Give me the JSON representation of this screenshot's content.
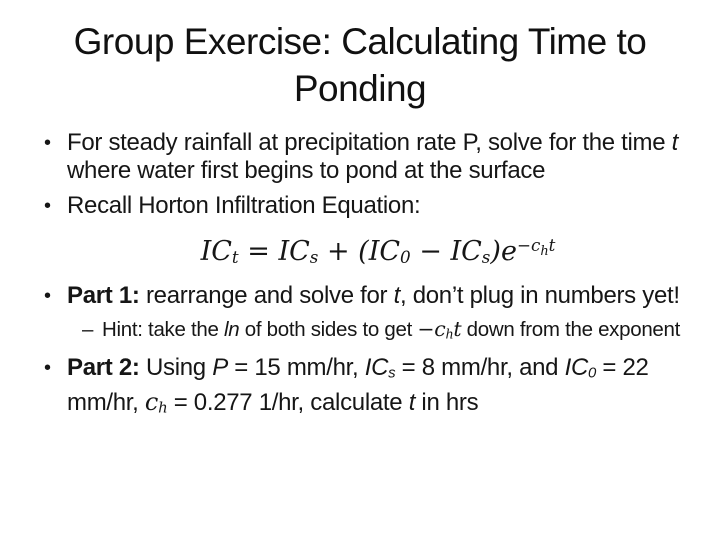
{
  "slide": {
    "background_color": "#ffffff",
    "text_color": "#161616",
    "title": "Group Exercise: Calculating Time to Ponding",
    "bullet_char": "•",
    "dash_char": "–",
    "content": [
      {
        "kind": "bullet",
        "level": 1,
        "segments": [
          {
            "t": "For steady rainfall at precipitation rate P, solve for the time "
          },
          {
            "t": "t",
            "s": "i"
          },
          {
            "t": " where water first begins to pond at the surface"
          }
        ]
      },
      {
        "kind": "bullet",
        "level": 1,
        "segments": [
          {
            "t": "Recall Horton Infiltration Equation:"
          }
        ]
      },
      {
        "kind": "equation",
        "segments": [
          {
            "t": "IC",
            "s": "m"
          },
          {
            "t": "t",
            "s": "m sub"
          },
          {
            "t": " = ",
            "s": "m"
          },
          {
            "t": "IC",
            "s": "m"
          },
          {
            "t": "s",
            "s": "m sub"
          },
          {
            "t": " + (",
            "s": "m"
          },
          {
            "t": "IC",
            "s": "m"
          },
          {
            "t": "0",
            "s": "m sub"
          },
          {
            "t": " − ",
            "s": "m"
          },
          {
            "t": "IC",
            "s": "m"
          },
          {
            "t": "s",
            "s": "m sub"
          },
          {
            "t": ")",
            "s": "m"
          },
          {
            "t": "e",
            "s": "m"
          },
          {
            "t": "−c",
            "s": "m sup"
          },
          {
            "t": "h",
            "s": "m ssub"
          },
          {
            "t": "t",
            "s": "m sup"
          }
        ]
      },
      {
        "kind": "bullet",
        "level": 1,
        "segments": [
          {
            "t": "Part 1:",
            "s": "b"
          },
          {
            "t": " rearrange and solve for "
          },
          {
            "t": "t",
            "s": "i"
          },
          {
            "t": ", don’t plug in numbers yet!"
          }
        ]
      },
      {
        "kind": "bullet",
        "level": 2,
        "segments": [
          {
            "t": "Hint: take the "
          },
          {
            "t": "ln",
            "s": "i"
          },
          {
            "t": " of both sides to get "
          },
          {
            "t": "−c",
            "s": "m"
          },
          {
            "t": "h",
            "s": "m sub"
          },
          {
            "t": "t",
            "s": "m"
          },
          {
            "t": " down from the exponent"
          }
        ]
      },
      {
        "kind": "bullet",
        "level": 1,
        "segments": [
          {
            "t": "Part 2:",
            "s": "b"
          },
          {
            "t": " Using "
          },
          {
            "t": "P",
            "s": "i"
          },
          {
            "t": " = 15 mm/hr, "
          },
          {
            "t": "IC",
            "s": "i"
          },
          {
            "t": "s",
            "s": "i sub"
          },
          {
            "t": " = 8 mm/hr, and "
          },
          {
            "t": "IC",
            "s": "i"
          },
          {
            "t": "0",
            "s": "i sub"
          },
          {
            "t": " = 22 mm/hr, "
          },
          {
            "t": "c",
            "s": "m"
          },
          {
            "t": "h",
            "s": "m sub"
          },
          {
            "t": " = 0.277 1/hr, calculate "
          },
          {
            "t": "t",
            "s": "i"
          },
          {
            "t": " in hrs"
          }
        ]
      }
    ]
  }
}
